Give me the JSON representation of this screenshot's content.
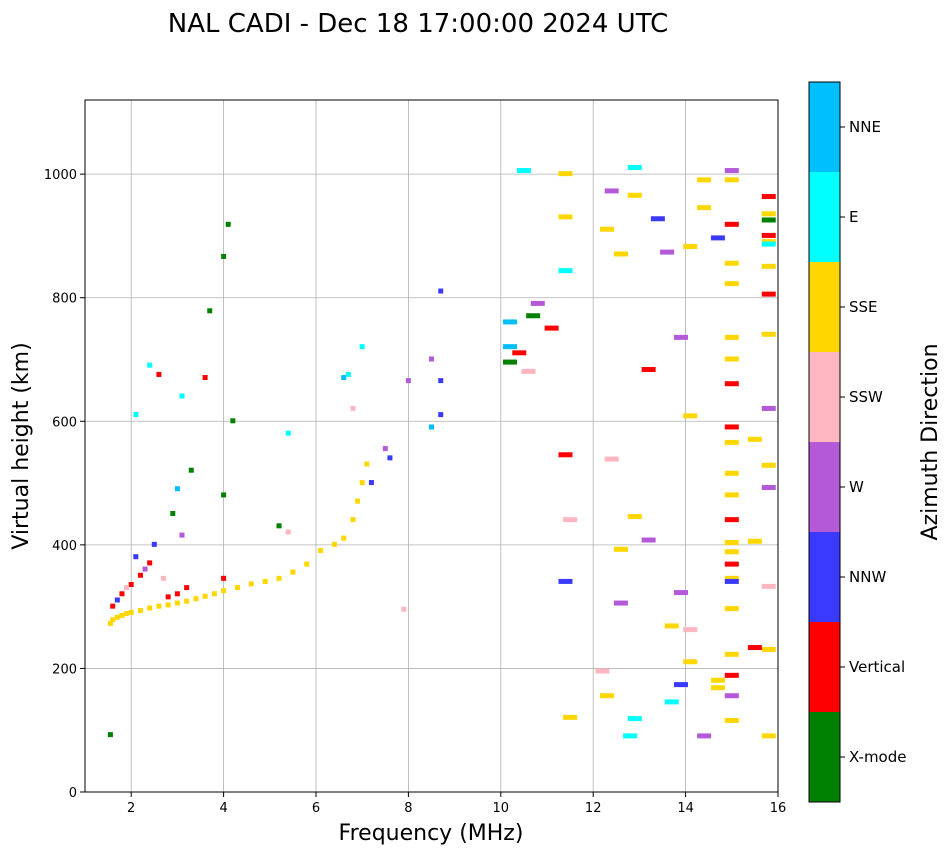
{
  "chart_data": {
    "type": "scatter",
    "title": "NAL CADI - Dec 18 17:00:00 2024 UTC",
    "xlabel": "Frequency (MHz)",
    "ylabel": "Virtual height (km)",
    "xlim": [
      1,
      16
    ],
    "ylim": [
      0,
      1120
    ],
    "x_ticks": [
      2,
      4,
      6,
      8,
      10,
      12,
      14,
      16
    ],
    "y_ticks": [
      0,
      200,
      400,
      600,
      800,
      1000
    ],
    "grid": true,
    "colorbar": {
      "title": "Azimuth Direction",
      "categories": [
        {
          "name": "X-mode",
          "color": "#008000"
        },
        {
          "name": "Vertical",
          "color": "#ff0000"
        },
        {
          "name": "NNW",
          "color": "#3a3aff"
        },
        {
          "name": "W",
          "color": "#b459d8"
        },
        {
          "name": "SSW",
          "color": "#ffb6c1"
        },
        {
          "name": "SSE",
          "color": "#ffd700"
        },
        {
          "name": "E",
          "color": "#00ffff"
        },
        {
          "name": "NNE",
          "color": "#00bfff"
        }
      ]
    },
    "points": [
      {
        "f": 1.55,
        "h": 272,
        "c": "SSE"
      },
      {
        "f": 1.6,
        "h": 278,
        "c": "SSE"
      },
      {
        "f": 1.7,
        "h": 282,
        "c": "SSE"
      },
      {
        "f": 1.8,
        "h": 285,
        "c": "SSE"
      },
      {
        "f": 1.9,
        "h": 288,
        "c": "SSE"
      },
      {
        "f": 2.0,
        "h": 290,
        "c": "SSE"
      },
      {
        "f": 2.2,
        "h": 293,
        "c": "SSE"
      },
      {
        "f": 2.4,
        "h": 297,
        "c": "SSE"
      },
      {
        "f": 2.6,
        "h": 300,
        "c": "SSE"
      },
      {
        "f": 2.8,
        "h": 302,
        "c": "SSE"
      },
      {
        "f": 3.0,
        "h": 305,
        "c": "SSE"
      },
      {
        "f": 3.2,
        "h": 308,
        "c": "SSE"
      },
      {
        "f": 3.4,
        "h": 312,
        "c": "SSE"
      },
      {
        "f": 3.6,
        "h": 316,
        "c": "SSE"
      },
      {
        "f": 3.8,
        "h": 320,
        "c": "SSE"
      },
      {
        "f": 4.0,
        "h": 325,
        "c": "SSE"
      },
      {
        "f": 4.3,
        "h": 330,
        "c": "SSE"
      },
      {
        "f": 4.6,
        "h": 336,
        "c": "SSE"
      },
      {
        "f": 4.9,
        "h": 340,
        "c": "SSE"
      },
      {
        "f": 5.2,
        "h": 345,
        "c": "SSE"
      },
      {
        "f": 5.5,
        "h": 355,
        "c": "SSE"
      },
      {
        "f": 5.8,
        "h": 368,
        "c": "SSE"
      },
      {
        "f": 6.1,
        "h": 390,
        "c": "SSE"
      },
      {
        "f": 6.4,
        "h": 400,
        "c": "SSE"
      },
      {
        "f": 6.6,
        "h": 410,
        "c": "SSE"
      },
      {
        "f": 6.8,
        "h": 440,
        "c": "SSE"
      },
      {
        "f": 6.9,
        "h": 470,
        "c": "SSE"
      },
      {
        "f": 7.0,
        "h": 500,
        "c": "SSE"
      },
      {
        "f": 7.1,
        "h": 530,
        "c": "SSE"
      },
      {
        "f": 1.6,
        "h": 300,
        "c": "Vertical"
      },
      {
        "f": 1.8,
        "h": 320,
        "c": "Vertical"
      },
      {
        "f": 2.0,
        "h": 335,
        "c": "Vertical"
      },
      {
        "f": 2.2,
        "h": 350,
        "c": "Vertical"
      },
      {
        "f": 2.4,
        "h": 370,
        "c": "Vertical"
      },
      {
        "f": 2.6,
        "h": 675,
        "c": "Vertical"
      },
      {
        "f": 3.0,
        "h": 320,
        "c": "Vertical"
      },
      {
        "f": 3.2,
        "h": 330,
        "c": "Vertical"
      },
      {
        "f": 3.6,
        "h": 670,
        "c": "Vertical"
      },
      {
        "f": 4.0,
        "h": 345,
        "c": "Vertical"
      },
      {
        "f": 2.8,
        "h": 315,
        "c": "Vertical"
      },
      {
        "f": 1.7,
        "h": 310,
        "c": "NNW"
      },
      {
        "f": 2.1,
        "h": 380,
        "c": "NNW"
      },
      {
        "f": 2.5,
        "h": 400,
        "c": "NNW"
      },
      {
        "f": 7.2,
        "h": 500,
        "c": "NNW"
      },
      {
        "f": 7.6,
        "h": 540,
        "c": "NNW"
      },
      {
        "f": 8.7,
        "h": 610,
        "c": "NNW"
      },
      {
        "f": 8.7,
        "h": 665,
        "c": "NNW"
      },
      {
        "f": 8.7,
        "h": 810,
        "c": "NNW"
      },
      {
        "f": 2.3,
        "h": 360,
        "c": "W"
      },
      {
        "f": 3.1,
        "h": 415,
        "c": "W"
      },
      {
        "f": 7.5,
        "h": 555,
        "c": "W"
      },
      {
        "f": 8.0,
        "h": 665,
        "c": "W"
      },
      {
        "f": 8.5,
        "h": 700,
        "c": "W"
      },
      {
        "f": 1.9,
        "h": 330,
        "c": "SSW"
      },
      {
        "f": 2.7,
        "h": 345,
        "c": "SSW"
      },
      {
        "f": 5.4,
        "h": 420,
        "c": "SSW"
      },
      {
        "f": 6.8,
        "h": 620,
        "c": "SSW"
      },
      {
        "f": 7.9,
        "h": 295,
        "c": "SSW"
      },
      {
        "f": 2.1,
        "h": 610,
        "c": "E"
      },
      {
        "f": 2.4,
        "h": 690,
        "c": "E"
      },
      {
        "f": 3.1,
        "h": 640,
        "c": "E"
      },
      {
        "f": 5.4,
        "h": 580,
        "c": "E"
      },
      {
        "f": 6.7,
        "h": 675,
        "c": "E"
      },
      {
        "f": 7.0,
        "h": 720,
        "c": "E"
      },
      {
        "f": 12.9,
        "h": 1010,
        "c": "E"
      },
      {
        "f": 12.8,
        "h": 90,
        "c": "E"
      },
      {
        "f": 3.0,
        "h": 490,
        "c": "NNE"
      },
      {
        "f": 6.6,
        "h": 670,
        "c": "NNE"
      },
      {
        "f": 8.5,
        "h": 590,
        "c": "NNE"
      },
      {
        "f": 10.2,
        "h": 720,
        "c": "NNE"
      },
      {
        "f": 10.2,
        "h": 760,
        "c": "NNE"
      },
      {
        "f": 2.9,
        "h": 450,
        "c": "X-mode"
      },
      {
        "f": 3.3,
        "h": 520,
        "c": "X-mode"
      },
      {
        "f": 4.0,
        "h": 480,
        "c": "X-mode"
      },
      {
        "f": 4.1,
        "h": 918,
        "c": "X-mode"
      },
      {
        "f": 4.0,
        "h": 866,
        "c": "X-mode"
      },
      {
        "f": 3.7,
        "h": 778,
        "c": "X-mode"
      },
      {
        "f": 4.2,
        "h": 600,
        "c": "X-mode"
      },
      {
        "f": 5.2,
        "h": 430,
        "c": "X-mode"
      },
      {
        "f": 10.2,
        "h": 695,
        "c": "X-mode"
      },
      {
        "f": 10.7,
        "h": 770,
        "c": "X-mode"
      },
      {
        "f": 1.55,
        "h": 92,
        "c": "X-mode"
      },
      {
        "f": 10.4,
        "h": 710,
        "c": "Vertical"
      },
      {
        "f": 11.1,
        "h": 750,
        "c": "Vertical"
      },
      {
        "f": 11.4,
        "h": 545,
        "c": "Vertical"
      },
      {
        "f": 10.8,
        "h": 790,
        "c": "W"
      },
      {
        "f": 10.6,
        "h": 680,
        "c": "SSW"
      },
      {
        "f": 11.4,
        "h": 1000,
        "c": "SSE"
      },
      {
        "f": 11.4,
        "h": 930,
        "c": "SSE"
      },
      {
        "f": 11.5,
        "h": 120,
        "c": "SSE"
      },
      {
        "f": 12.3,
        "h": 910,
        "c": "SSE"
      },
      {
        "f": 12.6,
        "h": 870,
        "c": "SSE"
      },
      {
        "f": 12.9,
        "h": 965,
        "c": "SSE"
      },
      {
        "f": 12.9,
        "h": 445,
        "c": "SSE"
      },
      {
        "f": 12.6,
        "h": 392,
        "c": "SSE"
      },
      {
        "f": 12.3,
        "h": 155,
        "c": "SSE"
      },
      {
        "f": 13.7,
        "h": 268,
        "c": "SSE"
      },
      {
        "f": 14.1,
        "h": 608,
        "c": "SSE"
      },
      {
        "f": 14.1,
        "h": 882,
        "c": "SSE"
      },
      {
        "f": 14.1,
        "h": 210,
        "c": "SSE"
      },
      {
        "f": 14.4,
        "h": 945,
        "c": "SSE"
      },
      {
        "f": 14.4,
        "h": 990,
        "c": "SSE"
      },
      {
        "f": 14.7,
        "h": 180,
        "c": "SSE"
      },
      {
        "f": 14.7,
        "h": 168,
        "c": "SSE"
      },
      {
        "f": 15.0,
        "h": 990,
        "c": "SSE"
      },
      {
        "f": 15.0,
        "h": 855,
        "c": "SSE"
      },
      {
        "f": 15.0,
        "h": 822,
        "c": "SSE"
      },
      {
        "f": 15.0,
        "h": 735,
        "c": "SSE"
      },
      {
        "f": 15.0,
        "h": 700,
        "c": "SSE"
      },
      {
        "f": 15.0,
        "h": 565,
        "c": "SSE"
      },
      {
        "f": 15.0,
        "h": 515,
        "c": "SSE"
      },
      {
        "f": 15.0,
        "h": 480,
        "c": "SSE"
      },
      {
        "f": 15.0,
        "h": 403,
        "c": "SSE"
      },
      {
        "f": 15.0,
        "h": 388,
        "c": "SSE"
      },
      {
        "f": 15.0,
        "h": 345,
        "c": "SSE"
      },
      {
        "f": 15.0,
        "h": 296,
        "c": "SSE"
      },
      {
        "f": 15.0,
        "h": 222,
        "c": "SSE"
      },
      {
        "f": 15.0,
        "h": 115,
        "c": "SSE"
      },
      {
        "f": 15.5,
        "h": 570,
        "c": "SSE"
      },
      {
        "f": 15.5,
        "h": 405,
        "c": "SSE"
      },
      {
        "f": 15.8,
        "h": 850,
        "c": "SSE"
      },
      {
        "f": 15.8,
        "h": 740,
        "c": "SSE"
      },
      {
        "f": 15.8,
        "h": 528,
        "c": "SSE"
      },
      {
        "f": 15.8,
        "h": 230,
        "c": "SSE"
      },
      {
        "f": 15.8,
        "h": 90,
        "c": "SSE"
      },
      {
        "f": 15.8,
        "h": 890,
        "c": "SSE"
      },
      {
        "f": 15.8,
        "h": 935,
        "c": "SSE"
      },
      {
        "f": 15.0,
        "h": 918,
        "c": "Vertical"
      },
      {
        "f": 15.0,
        "h": 660,
        "c": "Vertical"
      },
      {
        "f": 15.0,
        "h": 590,
        "c": "Vertical"
      },
      {
        "f": 15.0,
        "h": 440,
        "c": "Vertical"
      },
      {
        "f": 15.0,
        "h": 368,
        "c": "Vertical"
      },
      {
        "f": 15.0,
        "h": 188,
        "c": "Vertical"
      },
      {
        "f": 15.5,
        "h": 233,
        "c": "Vertical"
      },
      {
        "f": 15.8,
        "h": 963,
        "c": "Vertical"
      },
      {
        "f": 15.8,
        "h": 900,
        "c": "Vertical"
      },
      {
        "f": 15.8,
        "h": 805,
        "c": "Vertical"
      },
      {
        "f": 13.2,
        "h": 683,
        "c": "Vertical"
      },
      {
        "f": 13.4,
        "h": 927,
        "c": "NNW"
      },
      {
        "f": 14.7,
        "h": 896,
        "c": "NNW"
      },
      {
        "f": 13.9,
        "h": 173,
        "c": "NNW"
      },
      {
        "f": 15.0,
        "h": 340,
        "c": "NNW"
      },
      {
        "f": 11.4,
        "h": 340,
        "c": "NNW"
      },
      {
        "f": 12.4,
        "h": 972,
        "c": "W"
      },
      {
        "f": 13.6,
        "h": 873,
        "c": "W"
      },
      {
        "f": 13.9,
        "h": 735,
        "c": "W"
      },
      {
        "f": 13.2,
        "h": 407,
        "c": "W"
      },
      {
        "f": 12.6,
        "h": 305,
        "c": "W"
      },
      {
        "f": 13.9,
        "h": 322,
        "c": "W"
      },
      {
        "f": 14.4,
        "h": 90,
        "c": "W"
      },
      {
        "f": 15.0,
        "h": 1005,
        "c": "W"
      },
      {
        "f": 15.8,
        "h": 620,
        "c": "W"
      },
      {
        "f": 15.8,
        "h": 492,
        "c": "W"
      },
      {
        "f": 15.0,
        "h": 155,
        "c": "W"
      },
      {
        "f": 12.4,
        "h": 538,
        "c": "SSW"
      },
      {
        "f": 14.1,
        "h": 262,
        "c": "SSW"
      },
      {
        "f": 12.2,
        "h": 195,
        "c": "SSW"
      },
      {
        "f": 15.8,
        "h": 332,
        "c": "SSW"
      },
      {
        "f": 11.5,
        "h": 440,
        "c": "SSW"
      },
      {
        "f": 11.4,
        "h": 843,
        "c": "E"
      },
      {
        "f": 13.7,
        "h": 145,
        "c": "E"
      },
      {
        "f": 12.9,
        "h": 118,
        "c": "E"
      },
      {
        "f": 10.5,
        "h": 1005,
        "c": "E"
      },
      {
        "f": 15.8,
        "h": 886,
        "c": "E"
      },
      {
        "f": 15.8,
        "h": 925,
        "c": "X-mode"
      }
    ]
  }
}
